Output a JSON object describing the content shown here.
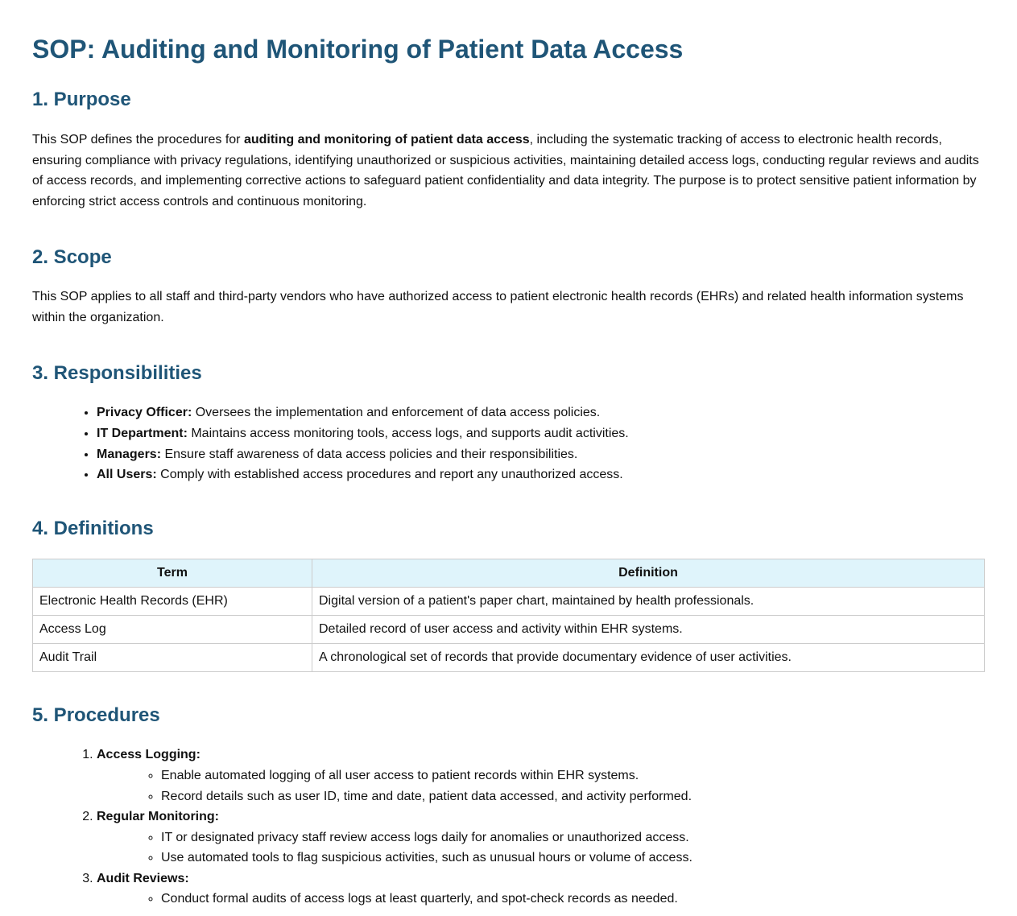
{
  "title": "SOP: Auditing and Monitoring of Patient Data Access",
  "purpose": {
    "heading": "1. Purpose",
    "text_before": "This SOP defines the procedures for ",
    "text_bold": "auditing and monitoring of patient data access",
    "text_after": ", including the systematic tracking of access to electronic health records, ensuring compliance with privacy regulations, identifying unauthorized or suspicious activities, maintaining detailed access logs, conducting regular reviews and audits of access records, and implementing corrective actions to safeguard patient confidentiality and data integrity. The purpose is to protect sensitive patient information by enforcing strict access controls and continuous monitoring."
  },
  "scope": {
    "heading": "2. Scope",
    "text": "This SOP applies to all staff and third-party vendors who have authorized access to patient electronic health records (EHRs) and related health information systems within the organization."
  },
  "responsibilities": {
    "heading": "3. Responsibilities",
    "items": [
      {
        "role": "Privacy Officer:",
        "desc": " Oversees the implementation and enforcement of data access policies."
      },
      {
        "role": "IT Department:",
        "desc": " Maintains access monitoring tools, access logs, and supports audit activities."
      },
      {
        "role": "Managers:",
        "desc": " Ensure staff awareness of data access policies and their responsibilities."
      },
      {
        "role": "All Users:",
        "desc": " Comply with established access procedures and report any unauthorized access."
      }
    ]
  },
  "definitions": {
    "heading": "4. Definitions",
    "columns": [
      "Term",
      "Definition"
    ],
    "rows": [
      [
        "Electronic Health Records (EHR)",
        "Digital version of a patient's paper chart, maintained by health professionals."
      ],
      [
        "Access Log",
        "Detailed record of user access and activity within EHR systems."
      ],
      [
        "Audit Trail",
        "A chronological set of records that provide documentary evidence of user activities."
      ]
    ]
  },
  "procedures": {
    "heading": "5. Procedures",
    "steps": [
      {
        "title": "Access Logging:",
        "items": [
          "Enable automated logging of all user access to patient records within EHR systems.",
          "Record details such as user ID, time and date, patient data accessed, and activity performed."
        ]
      },
      {
        "title": "Regular Monitoring:",
        "items": [
          "IT or designated privacy staff review access logs daily for anomalies or unauthorized access.",
          "Use automated tools to flag suspicious activities, such as unusual hours or volume of access."
        ]
      },
      {
        "title": "Audit Reviews:",
        "items": [
          "Conduct formal audits of access logs at least quarterly, and spot-check records as needed."
        ]
      }
    ]
  }
}
